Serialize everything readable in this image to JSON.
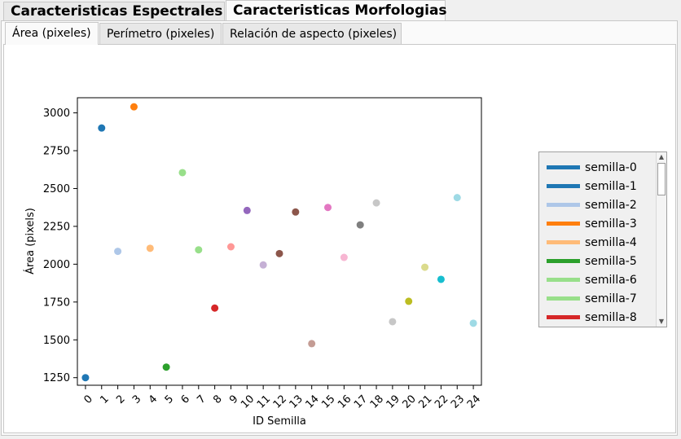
{
  "tabs": {
    "top": [
      "Caracteristicas Espectrales",
      "Caracteristicas Morfologias"
    ],
    "inner": [
      "Área (pixeles)",
      "Perímetro (pixeles)",
      "Relación de aspecto (pixeles)"
    ]
  },
  "chart_data": {
    "type": "scatter",
    "title": "",
    "xlabel": "ID Semilla",
    "ylabel": "Área (pixels)",
    "xlim": [
      -0.5,
      24.5
    ],
    "ylim": [
      1200,
      3100
    ],
    "yticks": [
      1250,
      1500,
      1750,
      2000,
      2250,
      2500,
      2750,
      3000
    ],
    "xticks": [
      "0",
      "1",
      "2",
      "3",
      "4",
      "5",
      "6",
      "7",
      "8",
      "9",
      "10",
      "11",
      "12",
      "13",
      "14",
      "15",
      "16",
      "17",
      "18",
      "19",
      "20",
      "21",
      "22",
      "23",
      "24"
    ],
    "x": [
      0,
      1,
      2,
      3,
      4,
      5,
      6,
      7,
      8,
      9,
      10,
      11,
      12,
      13,
      14,
      15,
      16,
      17,
      18,
      19,
      20,
      21,
      22,
      23,
      24
    ],
    "y": [
      1250,
      2900,
      2085,
      3040,
      2105,
      1320,
      2605,
      2095,
      1710,
      2115,
      2355,
      1995,
      2070,
      2345,
      1475,
      2375,
      2045,
      2260,
      2405,
      1620,
      1755,
      1980,
      1900,
      2440,
      1610
    ],
    "colors": [
      "#1f77b4",
      "#1f77b4",
      "#aec7e8",
      "#ff7f0e",
      "#ffbb78",
      "#2ca02c",
      "#98df8a",
      "#98df8a",
      "#d62728",
      "#ff9896",
      "#9467bd",
      "#c5b0d5",
      "#8c564b",
      "#8c564b",
      "#c49c94",
      "#e377c2",
      "#f7b6d2",
      "#7f7f7f",
      "#c7c7c7",
      "#c7c7c7",
      "#bcbd22",
      "#dbdb8d",
      "#17becf",
      "#9edae5",
      "#9edae5"
    ],
    "grid": false,
    "legend_position": "right",
    "legend": [
      {
        "label": "semilla-0",
        "color": "#1f77b4"
      },
      {
        "label": "semilla-1",
        "color": "#1f77b4"
      },
      {
        "label": "semilla-2",
        "color": "#aec7e8"
      },
      {
        "label": "semilla-3",
        "color": "#ff7f0e"
      },
      {
        "label": "semilla-4",
        "color": "#ffbb78"
      },
      {
        "label": "semilla-5",
        "color": "#2ca02c"
      },
      {
        "label": "semilla-6",
        "color": "#98df8a"
      },
      {
        "label": "semilla-7",
        "color": "#98df8a"
      },
      {
        "label": "semilla-8",
        "color": "#d62728"
      }
    ]
  },
  "legend_scroll": {
    "up_icon": "▲",
    "down_icon": "▼"
  }
}
